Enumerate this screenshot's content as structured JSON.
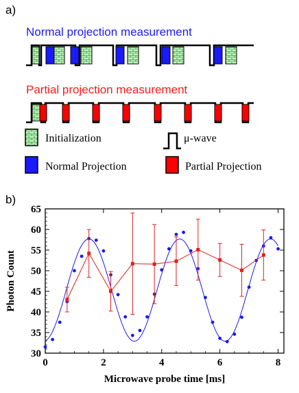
{
  "panel_a": {
    "label": "a)",
    "normal_title": "Normal projection measurement",
    "partial_title": "Partial projection measurement",
    "legend": {
      "initialization": "Initialization",
      "mu_wave": "μ-wave",
      "normal": "Normal Projection",
      "partial": "Partial Projection"
    }
  },
  "panel_b": {
    "label": "b)"
  },
  "colors": {
    "normal_title": "#1a1aff",
    "partial_title": "#ff1a1a",
    "init_fill": "#c8f0c8",
    "init_brick": "#3faa3f",
    "normal_fill": "#1a1aff",
    "partial_fill": "#ff0000",
    "blue_series": "#1a1aee",
    "red_series": "#e02020"
  },
  "chart_data": {
    "type": "scatter",
    "xlabel": "Microwave probe time [ms]",
    "ylabel": "Photon Count",
    "xlim": [
      0,
      8.2
    ],
    "ylim": [
      30,
      65
    ],
    "xticks": [
      0,
      2,
      4,
      6,
      8
    ],
    "yticks": [
      30,
      35,
      40,
      45,
      50,
      55,
      60,
      65
    ],
    "grid": false,
    "series": [
      {
        "kind": "points",
        "x": [
          0,
          0.25,
          0.5,
          0.75,
          1.0,
          1.25,
          1.5,
          1.75,
          2.0,
          2.25,
          2.5,
          2.75,
          3.0,
          3.25,
          3.5,
          3.75,
          4.0,
          4.25,
          4.5,
          4.75,
          5.0,
          5.25,
          5.5,
          5.75,
          6.0,
          6.25,
          6.5,
          6.75,
          7.0,
          7.25,
          7.5,
          7.75,
          8.0
        ],
        "y": [
          31.5,
          33.3,
          37.5,
          42.5,
          50.0,
          53.5,
          57.8,
          57.4,
          54.8,
          49.0,
          44.2,
          38.8,
          34.3,
          35.5,
          38.8,
          44.3,
          50.2,
          55.3,
          58.8,
          59.3,
          54.8,
          50.5,
          43.5,
          37.5,
          33.6,
          32.8,
          34.6,
          38.7,
          46.0,
          52.5,
          56.0,
          58.0,
          55.3
        ]
      },
      {
        "kind": "fit",
        "offset": 45.3,
        "amplitude": 12.4,
        "period": 3.12,
        "phase_x": 1.5
      },
      {
        "kind": "errorbar",
        "x": [
          0.75,
          1.5,
          2.25,
          3.0,
          3.75,
          4.5,
          5.25,
          6.0,
          6.75,
          7.5
        ],
        "y": [
          43.0,
          54.2,
          45.0,
          51.7,
          51.6,
          52.3,
          55.1,
          52.6,
          50.1,
          53.8
        ],
        "err": [
          3.0,
          5.8,
          4.8,
          12.3,
          9.6,
          5.9,
          7.4,
          4.0,
          6.3,
          6.1
        ]
      }
    ]
  }
}
